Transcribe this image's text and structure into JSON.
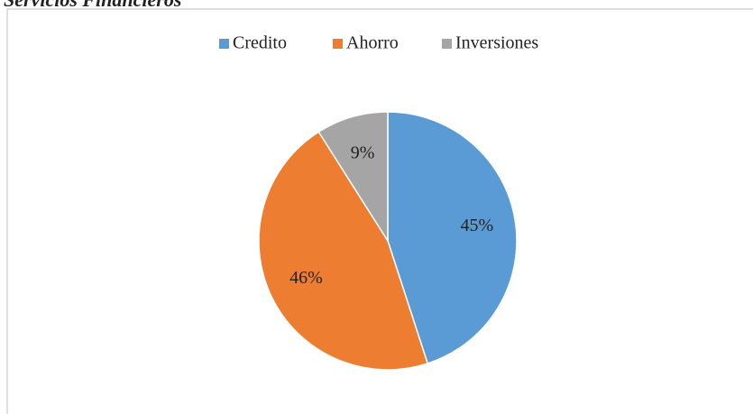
{
  "chart_data": {
    "type": "pie",
    "title": "Servicios Financieros",
    "categories": [
      "Credito",
      "Ahorro",
      "Inversiones"
    ],
    "values": [
      45,
      46,
      9
    ],
    "value_labels": [
      "45%",
      "46%",
      "9%"
    ],
    "colors": [
      "#5b9bd5",
      "#ed7d31",
      "#a5a5a5"
    ],
    "legend": "top"
  }
}
